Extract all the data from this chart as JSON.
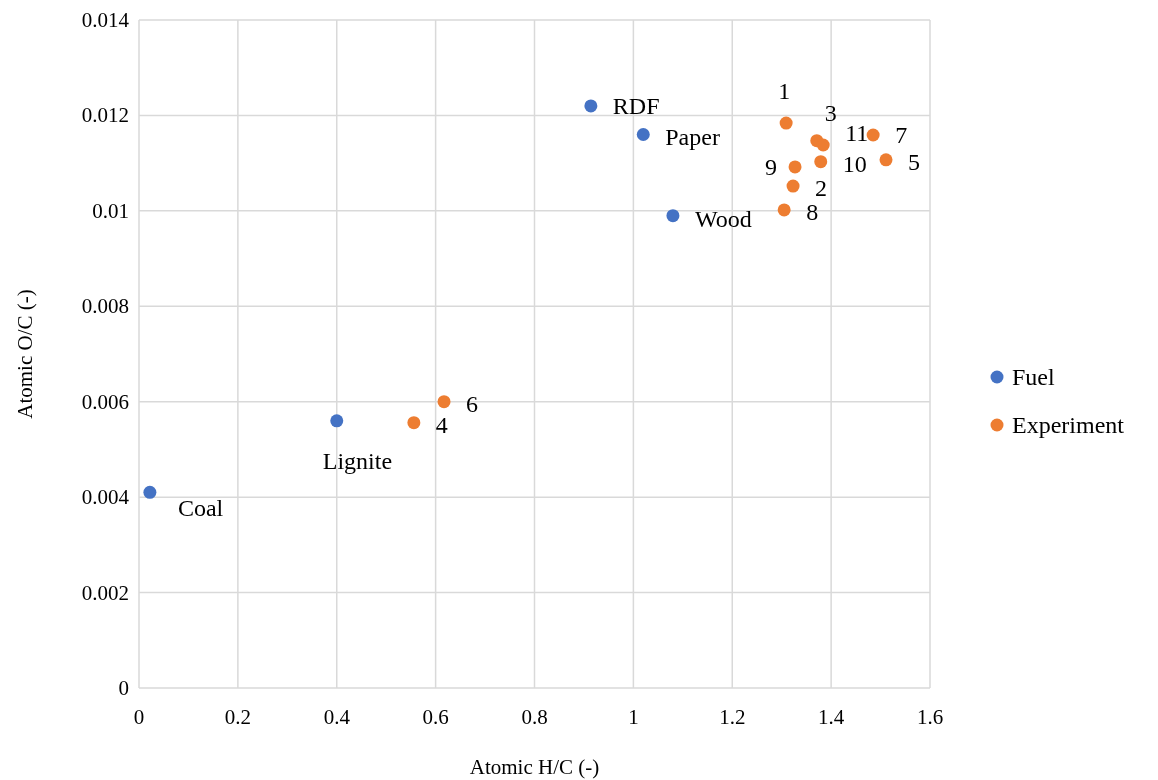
{
  "chart_data": {
    "type": "scatter",
    "xlabel": "Atomic H/C (-)",
    "ylabel": "Atomic O/C (-)",
    "xlim": [
      0,
      1.6
    ],
    "xticks": [
      0,
      0.2,
      0.4,
      0.6,
      0.8,
      1,
      1.2,
      1.4,
      1.6
    ],
    "ylim": [
      0,
      0.014
    ],
    "yticks": [
      0,
      0.002,
      0.004,
      0.006,
      0.008,
      0.01,
      0.012,
      0.014
    ],
    "grid": true,
    "legend": "right",
    "marker": "circle",
    "series": [
      {
        "name": "Fuel",
        "color": "#4472c4",
        "x": [
          0.022,
          0.4,
          0.914,
          1.02,
          1.08
        ],
        "values": [
          0.0041,
          0.0056,
          0.0122,
          0.0116,
          0.0099
        ]
      },
      {
        "name": "Experiment",
        "color": "#ed7d31",
        "x": [
          1.309,
          1.323,
          1.371,
          0.556,
          1.511,
          0.617,
          1.485,
          1.305,
          1.327,
          1.379,
          1.384
        ],
        "values": [
          0.01184,
          0.01052,
          0.01147,
          0.00556,
          0.01107,
          0.006,
          0.01159,
          0.01002,
          0.01092,
          0.01103,
          0.01138
        ]
      }
    ],
    "annotations": [
      {
        "text": "Coal",
        "x": 0.022,
        "y": 0.0041
      },
      {
        "text": "Lignite",
        "x": 0.4,
        "y": 0.0056
      },
      {
        "text": "RDF",
        "x": 0.914,
        "y": 0.0122
      },
      {
        "text": "Paper",
        "x": 1.02,
        "y": 0.0116
      },
      {
        "text": "Wood",
        "x": 1.08,
        "y": 0.0099
      },
      {
        "text": "1",
        "x": 1.309,
        "y": 0.01184
      },
      {
        "text": "2",
        "x": 1.323,
        "y": 0.01052
      },
      {
        "text": "3",
        "x": 1.371,
        "y": 0.01147
      },
      {
        "text": "4",
        "x": 0.556,
        "y": 0.00556
      },
      {
        "text": "5",
        "x": 1.511,
        "y": 0.01107
      },
      {
        "text": "6",
        "x": 0.617,
        "y": 0.006
      },
      {
        "text": "7",
        "x": 1.485,
        "y": 0.01159
      },
      {
        "text": "8",
        "x": 1.305,
        "y": 0.01002
      },
      {
        "text": "9",
        "x": 1.327,
        "y": 0.01092
      },
      {
        "text": "10",
        "x": 1.379,
        "y": 0.01103
      },
      {
        "text": "11",
        "x": 1.384,
        "y": 0.01138
      }
    ]
  }
}
